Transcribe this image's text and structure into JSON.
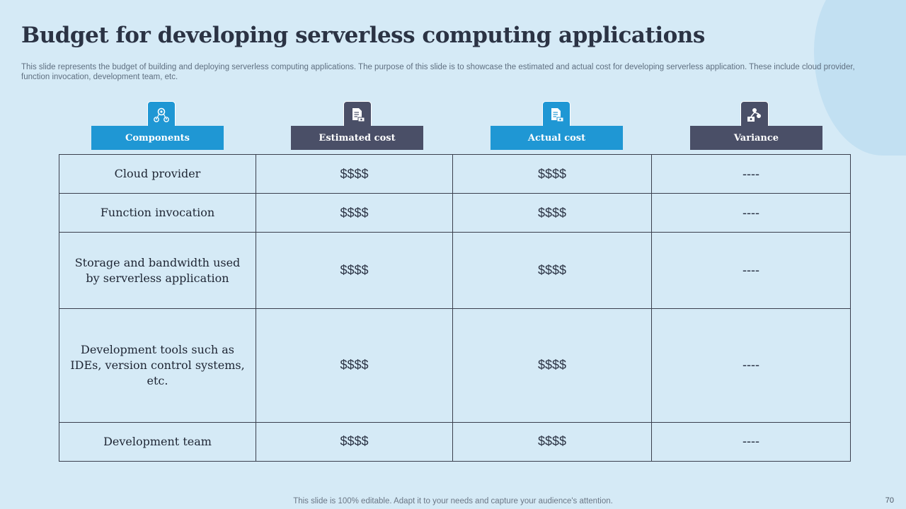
{
  "title": "Budget for developing serverless computing applications",
  "subtitle": "This slide represents the budget of building and deploying serverless computing applications. The purpose of this slide is to showcase the estimated and actual cost for developing serverless application. These include cloud provider, function invocation, development team, etc.",
  "table": {
    "headers": [
      {
        "label": "Components",
        "icon": "network-users-icon",
        "color": "#1f97d4"
      },
      {
        "label": "Estimated cost",
        "icon": "document-cash-icon",
        "color": "#4a4f67"
      },
      {
        "label": "Actual cost",
        "icon": "document-cash-icon",
        "color": "#1f97d4"
      },
      {
        "label": "Variance",
        "icon": "hierarchy-cash-icon",
        "color": "#4a4f67"
      }
    ],
    "rows": [
      {
        "component": "Cloud provider",
        "estimated": "$$$$",
        "actual": "$$$$",
        "variance": "----"
      },
      {
        "component": "Function invocation",
        "estimated": "$$$$",
        "actual": "$$$$",
        "variance": "----"
      },
      {
        "component": "Storage and bandwidth used by serverless application",
        "estimated": "$$$$",
        "actual": "$$$$",
        "variance": "----"
      },
      {
        "component": "Development tools such as IDEs, version control systems, etc.",
        "estimated": "$$$$",
        "actual": "$$$$",
        "variance": "----"
      },
      {
        "component": "Development team",
        "estimated": "$$$$",
        "actual": "$$$$",
        "variance": "----"
      }
    ]
  },
  "footer": "This slide is 100% editable. Adapt it to your needs and capture your audience's attention.",
  "page_number": "70"
}
